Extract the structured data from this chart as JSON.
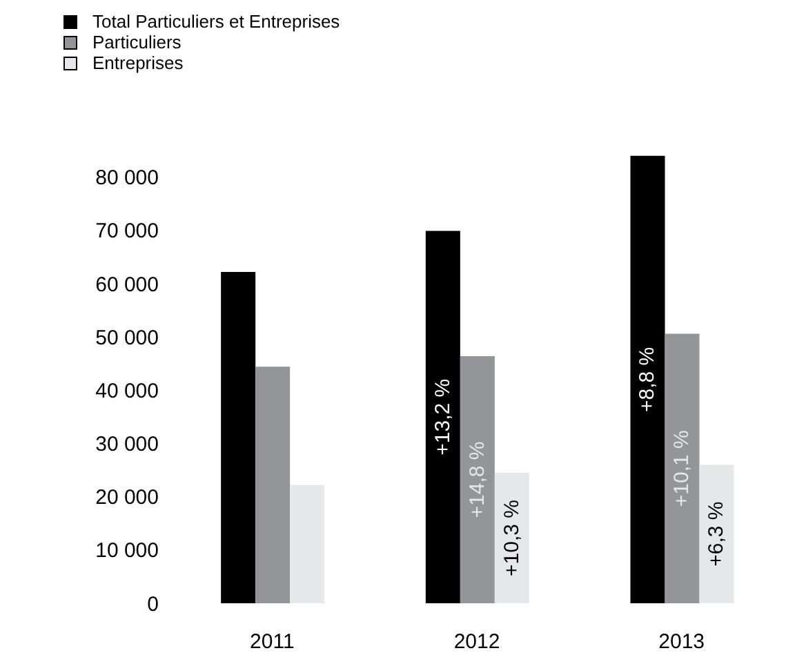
{
  "chart_data": {
    "type": "bar",
    "categories": [
      "2011",
      "2012",
      "2013"
    ],
    "series": [
      {
        "name": "Total Particuliers et Entreprises",
        "color": "#000000",
        "values": [
          62200,
          69900,
          84000
        ]
      },
      {
        "name": "Particuliers",
        "color": "#939598",
        "values": [
          44400,
          46400,
          50600
        ]
      },
      {
        "name": "Entreprises",
        "color": "#e6e7e8",
        "values": [
          22200,
          24500,
          26000
        ]
      }
    ],
    "annotations": [
      "+13,2 %",
      "+14,8 %",
      "+10,3 %",
      "+8,8 %",
      "+10,1 %",
      "+6,3 %"
    ],
    "ylim": [
      0,
      85000
    ],
    "yticks": [
      {
        "value": 0,
        "label": "0"
      },
      {
        "value": 10000,
        "label": "10 000"
      },
      {
        "value": 20000,
        "label": "20 000"
      },
      {
        "value": 30000,
        "label": "30 000"
      },
      {
        "value": 40000,
        "label": "40 000"
      },
      {
        "value": 50000,
        "label": "50 000"
      },
      {
        "value": 60000,
        "label": "60 000"
      },
      {
        "value": 70000,
        "label": "70 000"
      },
      {
        "value": 80000,
        "label": "80 000"
      }
    ],
    "grid": false,
    "legend": "top left"
  }
}
